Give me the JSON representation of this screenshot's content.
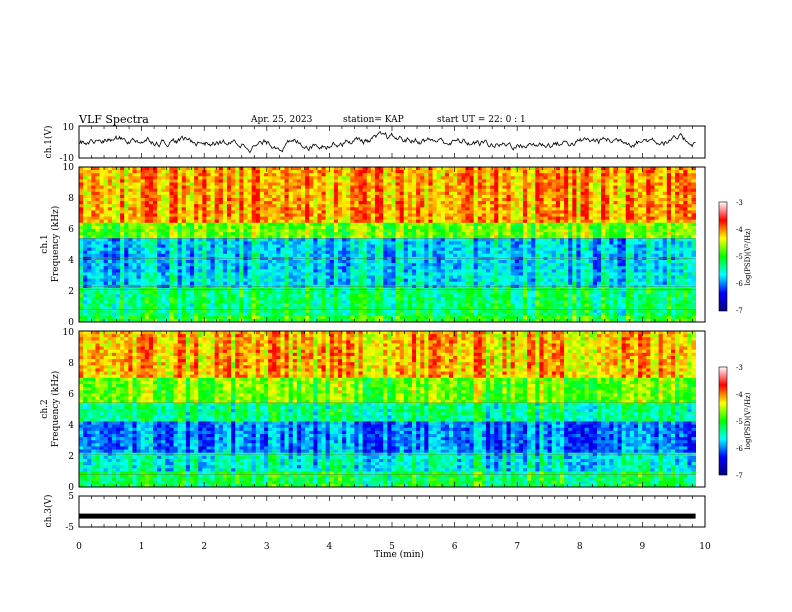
{
  "header": {
    "title": "VLF Spectra",
    "date": "Apr. 25, 2023",
    "station": "station= KAP",
    "start": "start  UT  =   22: 0   : 1"
  },
  "colors": {
    "colormap": [
      "#000080",
      "#0000ff",
      "#00ffff",
      "#00ff00",
      "#ffff00",
      "#ff0000",
      "#ffffff"
    ],
    "trace": "#000000"
  },
  "chart_data": [
    {
      "type": "line",
      "panel": "ch1-waveform",
      "ylabel": "ch.1(V)",
      "ylim": [
        -10,
        10
      ],
      "yticks": [
        "10",
        "-10"
      ],
      "xlim": [
        0,
        9.85
      ],
      "note_series": "voltage waveform, oscillating roughly between -5 and 5 V"
    },
    {
      "type": "heatmap",
      "panel": "ch1-spectrogram",
      "ylabel": [
        "ch.1",
        "Frequency  (kHz)"
      ],
      "ylim": [
        0,
        10
      ],
      "yticks": [
        "0",
        "2",
        "4",
        "6",
        "8",
        "10"
      ],
      "xlim": [
        0,
        9.85
      ],
      "bands": [
        {
          "from": 0,
          "to": 0.5,
          "level": -4.6
        },
        {
          "from": 0.5,
          "to": 2.3,
          "level": -4.9
        },
        {
          "from": 2.3,
          "to": 3.2,
          "level": -5.4
        },
        {
          "from": 3.2,
          "to": 5.5,
          "level": -5.5
        },
        {
          "from": 5.5,
          "to": 6.5,
          "level": -4.3
        },
        {
          "from": 6.5,
          "to": 10,
          "level": -3.5
        }
      ],
      "colorbar": {
        "label": "log(PSD)(V²/Hz)",
        "ticks": [
          "-3",
          "-4",
          "-5",
          "-6",
          "-7"
        ],
        "range": [
          -7,
          -3
        ]
      }
    },
    {
      "type": "heatmap",
      "panel": "ch2-spectrogram",
      "ylabel": [
        "ch.2",
        "Frequency  (kHz)"
      ],
      "ylim": [
        0,
        10
      ],
      "yticks": [
        "0",
        "2",
        "4",
        "6",
        "8",
        "10"
      ],
      "xlim": [
        0,
        9.85
      ],
      "bands": [
        {
          "from": 0,
          "to": 1.0,
          "level": -4.8
        },
        {
          "from": 1.0,
          "to": 2.2,
          "level": -5.3
        },
        {
          "from": 2.2,
          "to": 4.2,
          "level": -5.8
        },
        {
          "from": 4.2,
          "to": 5.5,
          "level": -5.0
        },
        {
          "from": 5.5,
          "to": 7.0,
          "level": -4.3
        },
        {
          "from": 7.0,
          "to": 10,
          "level": -3.6
        }
      ],
      "colorbar": {
        "label": "log(PSD)(V²/Hz)",
        "ticks": [
          "-3",
          "-4",
          "-5",
          "-6",
          "-7"
        ],
        "range": [
          -7,
          -3
        ]
      }
    },
    {
      "type": "line",
      "panel": "ch3-waveform",
      "ylabel": "ch.3(V)",
      "ylim": [
        -5,
        5
      ],
      "yticks": [
        "5",
        "-5"
      ],
      "xlim": [
        0,
        9.85
      ],
      "level": -1.5
    }
  ],
  "xaxis": {
    "label": "Time  (min)",
    "range": [
      0,
      10
    ],
    "ticks": [
      "0",
      "1",
      "2",
      "3",
      "4",
      "5",
      "6",
      "7",
      "8",
      "9",
      "10"
    ]
  }
}
